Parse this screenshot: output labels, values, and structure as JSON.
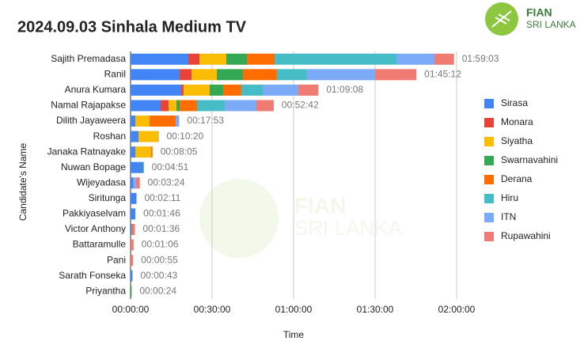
{
  "chart_data": {
    "type": "stacked-barh",
    "title": "2024.09.03 Sinhala Medium TV",
    "logo": {
      "line1": "FIAN",
      "line2": "SRI LANKA"
    },
    "x_label": "Time",
    "y_label": "Candidate's Name",
    "categories": [
      "Sajith Premadasa",
      "Ranil",
      "Anura Kumara",
      "Namal Rajapakse",
      "Dilith Jayaweera",
      "Roshan",
      "Janaka Ratnayake",
      "Nuwan Bopage",
      "Wijeyadasa",
      "Siritunga",
      "Pakkiyaselvam",
      "Victor Anthony",
      "Battaramulle",
      "Pani",
      "Sarath Fonseka",
      "Priyantha"
    ],
    "series": [
      {
        "name": "Sirasa",
        "color": "#4285f4",
        "values": [
          1276,
          1083,
          1118,
          664,
          105,
          175,
          105,
          270,
          60,
          131,
          106,
          30,
          0,
          0,
          43,
          0
        ]
      },
      {
        "name": "Monara",
        "color": "#ea4335",
        "values": [
          245,
          262,
          52,
          175,
          0,
          0,
          0,
          0,
          0,
          0,
          0,
          0,
          0,
          0,
          0,
          0
        ]
      },
      {
        "name": "Siyatha",
        "color": "#fbbc04",
        "values": [
          594,
          559,
          577,
          175,
          315,
          437,
          350,
          0,
          0,
          0,
          0,
          0,
          0,
          0,
          0,
          0
        ]
      },
      {
        "name": "Swarnavahini",
        "color": "#34a853",
        "values": [
          454,
          577,
          297,
          70,
          0,
          8,
          0,
          21,
          0,
          0,
          0,
          0,
          0,
          0,
          0,
          24
        ]
      },
      {
        "name": "Derana",
        "color": "#ff6d01",
        "values": [
          612,
          751,
          402,
          384,
          577,
          0,
          30,
          0,
          0,
          0,
          0,
          20,
          0,
          0,
          0,
          0
        ]
      },
      {
        "name": "Hiru",
        "color": "#46bdc6",
        "values": [
          2691,
          664,
          472,
          612,
          0,
          0,
          0,
          0,
          0,
          0,
          0,
          0,
          0,
          0,
          0,
          0
        ]
      },
      {
        "name": "ITN",
        "color": "#7baaf7",
        "values": [
          839,
          1503,
          786,
          699,
          76,
          0,
          0,
          0,
          60,
          0,
          0,
          0,
          0,
          0,
          0,
          0
        ]
      },
      {
        "name": "Rupawahini",
        "color": "#f07b72",
        "values": [
          432,
          913,
          444,
          383,
          0,
          0,
          0,
          0,
          84,
          0,
          0,
          46,
          66,
          55,
          0,
          0
        ]
      }
    ],
    "totals": [
      7143,
      6312,
      4148,
      3162,
      1073,
      620,
      485,
      291,
      204,
      131,
      106,
      96,
      66,
      55,
      43,
      24
    ],
    "total_labels": [
      "01:59:03",
      "01:45:12",
      "01:09:08",
      "00:52:42",
      "00:17:53",
      "00:10:20",
      "00:08:05",
      "00:04:51",
      "00:03:24",
      "00:02:11",
      "00:01:46",
      "00:01:36",
      "00:01:06",
      "00:00:55",
      "00:00:43",
      "00:00:24"
    ],
    "xlim": [
      0,
      7200
    ],
    "xticks": [
      {
        "value": 0,
        "label": "00:00:00"
      },
      {
        "value": 1800,
        "label": "00:30:00"
      },
      {
        "value": 3600,
        "label": "01:00:00"
      },
      {
        "value": 5400,
        "label": "01:30:00"
      },
      {
        "value": 7200,
        "label": "02:00:00"
      }
    ],
    "grid": true,
    "legend": "right"
  }
}
